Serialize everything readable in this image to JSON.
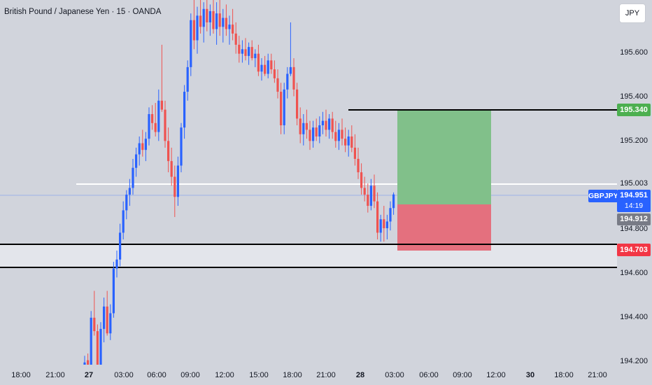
{
  "header": {
    "title": "British Pound / Japanese Yen · 15 · OANDA"
  },
  "currency_button": {
    "label": "JPY"
  },
  "y_axis": {
    "labels": [
      "195.600",
      "195.400",
      "195.200",
      "195.003",
      "194.800",
      "194.600",
      "194.400",
      "194.200"
    ]
  },
  "x_axis": {
    "labels": [
      {
        "text": "18:00",
        "bold": false
      },
      {
        "text": "21:00",
        "bold": false
      },
      {
        "text": "27",
        "bold": true
      },
      {
        "text": "03:00",
        "bold": false
      },
      {
        "text": "06:00",
        "bold": false
      },
      {
        "text": "09:00",
        "bold": false
      },
      {
        "text": "12:00",
        "bold": false
      },
      {
        "text": "15:00",
        "bold": false
      },
      {
        "text": "18:00",
        "bold": false
      },
      {
        "text": "21:00",
        "bold": false
      },
      {
        "text": "28",
        "bold": true
      },
      {
        "text": "03:00",
        "bold": false
      },
      {
        "text": "06:00",
        "bold": false
      },
      {
        "text": "09:00",
        "bold": false
      },
      {
        "text": "12:00",
        "bold": false
      },
      {
        "text": "30",
        "bold": true
      },
      {
        "text": "18:00",
        "bold": false
      },
      {
        "text": "21:00",
        "bold": false
      }
    ]
  },
  "price_tags": {
    "take_profit": "195.340",
    "last_price": "194.951",
    "countdown": "14:19",
    "marker": "194.912",
    "stop_loss": "194.703"
  },
  "symbol_tag": "GBPJPY",
  "colors": {
    "background": "#d1d4dc",
    "up": "#2962ff",
    "down": "#ef5350",
    "profit_zone": "#81c08a",
    "loss_zone": "#e4707e",
    "take_profit_tag": "#4caf50",
    "last_price_tag": "#2962ff",
    "marker_tag": "#787b86",
    "stop_loss_tag": "#f23645"
  },
  "chart_data": {
    "type": "candlestick",
    "ylim": [
      194.19,
      195.82
    ],
    "candles": [
      [
        194.18,
        194.23,
        194.16,
        194.2
      ],
      [
        194.21,
        194.24,
        194.15,
        194.17
      ],
      [
        194.16,
        194.43,
        194.15,
        194.4
      ],
      [
        194.4,
        194.52,
        194.32,
        194.34
      ],
      [
        194.34,
        194.37,
        194.16,
        194.19
      ],
      [
        194.19,
        194.38,
        194.17,
        194.35
      ],
      [
        194.35,
        194.49,
        194.29,
        194.45
      ],
      [
        194.45,
        194.52,
        194.32,
        194.33
      ],
      [
        194.33,
        194.46,
        194.3,
        194.42
      ],
      [
        194.42,
        194.65,
        194.4,
        194.62
      ],
      [
        194.62,
        194.7,
        194.58,
        194.66
      ],
      [
        194.66,
        194.82,
        194.63,
        194.78
      ],
      [
        194.78,
        194.92,
        194.75,
        194.88
      ],
      [
        194.88,
        194.97,
        194.84,
        194.95
      ],
      [
        194.95,
        195.02,
        194.9,
        194.98
      ],
      [
        194.98,
        195.11,
        194.95,
        195.07
      ],
      [
        195.07,
        195.16,
        195.03,
        195.13
      ],
      [
        195.13,
        195.21,
        195.08,
        195.18
      ],
      [
        195.18,
        195.24,
        195.12,
        195.15
      ],
      [
        195.15,
        195.23,
        195.1,
        195.2
      ],
      [
        195.2,
        195.34,
        195.17,
        195.31
      ],
      [
        195.31,
        195.35,
        195.24,
        195.27
      ],
      [
        195.27,
        195.36,
        195.21,
        195.23
      ],
      [
        195.23,
        195.42,
        195.19,
        195.37
      ],
      [
        195.37,
        195.62,
        195.32,
        195.33
      ],
      [
        195.33,
        195.37,
        195.16,
        195.19
      ],
      [
        195.19,
        195.25,
        195.05,
        195.1
      ],
      [
        195.1,
        195.16,
        194.99,
        195.03
      ],
      [
        195.03,
        195.08,
        194.85,
        194.94
      ],
      [
        194.94,
        195.12,
        194.9,
        195.08
      ],
      [
        195.08,
        195.27,
        195.05,
        195.25
      ],
      [
        195.25,
        195.44,
        195.2,
        195.41
      ],
      [
        195.41,
        195.55,
        195.37,
        195.52
      ],
      [
        195.52,
        195.76,
        195.48,
        195.73
      ],
      [
        195.73,
        195.82,
        195.6,
        195.64
      ],
      [
        195.64,
        195.79,
        195.58,
        195.75
      ],
      [
        195.75,
        195.82,
        195.67,
        195.7
      ],
      [
        195.7,
        195.81,
        195.63,
        195.78
      ],
      [
        195.78,
        195.82,
        195.68,
        195.72
      ],
      [
        195.72,
        195.8,
        195.66,
        195.77
      ],
      [
        195.77,
        195.82,
        195.67,
        195.69
      ],
      [
        195.69,
        195.81,
        195.62,
        195.76
      ],
      [
        195.76,
        195.82,
        195.66,
        195.7
      ],
      [
        195.7,
        195.78,
        195.63,
        195.74
      ],
      [
        195.74,
        195.8,
        195.66,
        195.69
      ],
      [
        195.69,
        195.75,
        195.62,
        195.71
      ],
      [
        195.71,
        195.78,
        195.64,
        195.67
      ],
      [
        195.67,
        195.72,
        195.58,
        195.62
      ],
      [
        195.62,
        195.66,
        195.54,
        195.58
      ],
      [
        195.58,
        195.64,
        195.54,
        195.6
      ],
      [
        195.6,
        195.65,
        195.55,
        195.57
      ],
      [
        195.57,
        195.63,
        195.53,
        195.61
      ],
      [
        195.61,
        195.64,
        195.55,
        195.56
      ],
      [
        195.56,
        195.6,
        195.52,
        195.58
      ],
      [
        195.58,
        195.62,
        195.48,
        195.5
      ],
      [
        195.5,
        195.56,
        195.46,
        195.53
      ],
      [
        195.53,
        195.57,
        195.48,
        195.49
      ],
      [
        195.49,
        195.58,
        195.47,
        195.55
      ],
      [
        195.55,
        195.58,
        195.49,
        195.51
      ],
      [
        195.51,
        195.55,
        195.45,
        195.47
      ],
      [
        195.47,
        195.51,
        195.38,
        195.41
      ],
      [
        195.41,
        195.45,
        195.22,
        195.26
      ],
      [
        195.26,
        195.45,
        195.22,
        195.42
      ],
      [
        195.42,
        195.52,
        195.38,
        195.49
      ],
      [
        195.49,
        195.72,
        195.48,
        195.52
      ],
      [
        195.52,
        195.56,
        195.39,
        195.42
      ],
      [
        195.42,
        195.45,
        195.26,
        195.29
      ],
      [
        195.29,
        195.34,
        195.18,
        195.22
      ],
      [
        195.22,
        195.31,
        195.17,
        195.27
      ],
      [
        195.27,
        195.33,
        195.2,
        195.24
      ],
      [
        195.24,
        195.28,
        195.15,
        195.19
      ],
      [
        195.19,
        195.28,
        195.16,
        195.25
      ],
      [
        195.25,
        195.29,
        195.19,
        195.21
      ],
      [
        195.21,
        195.3,
        195.18,
        195.26
      ],
      [
        195.26,
        195.32,
        195.22,
        195.28
      ],
      [
        195.28,
        195.33,
        195.21,
        195.24
      ],
      [
        195.24,
        195.31,
        195.2,
        195.29
      ],
      [
        195.29,
        195.32,
        195.2,
        195.23
      ],
      [
        195.23,
        195.28,
        195.16,
        195.19
      ],
      [
        195.19,
        195.27,
        195.15,
        195.24
      ],
      [
        195.24,
        195.29,
        195.17,
        195.2
      ],
      [
        195.2,
        195.25,
        195.14,
        195.17
      ],
      [
        195.17,
        195.24,
        195.12,
        195.21
      ],
      [
        195.21,
        195.26,
        195.14,
        195.16
      ],
      [
        195.16,
        195.22,
        195.08,
        195.11
      ],
      [
        195.11,
        195.16,
        195.02,
        195.05
      ],
      [
        195.05,
        195.09,
        194.95,
        194.98
      ],
      [
        194.98,
        195.03,
        194.92,
        194.95
      ],
      [
        194.95,
        195.0,
        194.87,
        194.9
      ],
      [
        194.9,
        195.02,
        194.88,
        194.99
      ],
      [
        194.99,
        195.04,
        194.89,
        194.92
      ],
      [
        194.92,
        194.96,
        194.75,
        194.78
      ],
      [
        194.78,
        194.86,
        194.74,
        194.84
      ],
      [
        194.84,
        194.9,
        194.74,
        194.8
      ],
      [
        194.8,
        194.86,
        194.75,
        194.83
      ],
      [
        194.83,
        194.92,
        194.79,
        194.89
      ],
      [
        194.89,
        194.96,
        194.86,
        194.951
      ]
    ]
  }
}
